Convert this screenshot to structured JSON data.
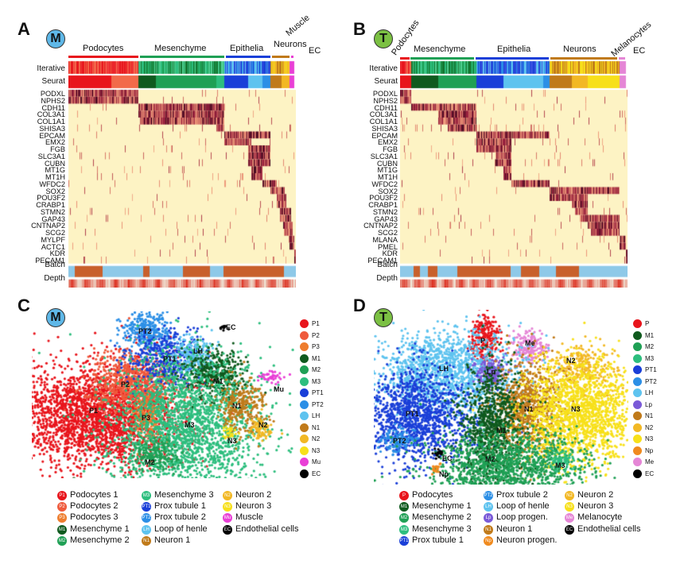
{
  "panels": {
    "A": {
      "letter": "A",
      "badge": "M",
      "groups": [
        "Podocytes",
        "Mesenchyme",
        "Epithelia",
        "Neurons",
        "Muscle",
        "EC"
      ],
      "tracks": {
        "iterative": "Iterative",
        "seurat": "Seurat",
        "batch": "Batch",
        "depth": "Depth"
      },
      "genes": [
        "PODXL",
        "NPHS2",
        "CDH11",
        "COL3A1",
        "COL1A1",
        "SHISA3",
        "EPCAM",
        "EMX2",
        "FGB",
        "SLC3A1",
        "CUBN",
        "MT1G",
        "MT1H",
        "WFDC2",
        "SOX2",
        "POU3F2",
        "CRABP1",
        "STMN2",
        "GAP43",
        "CNTNAP2",
        "SCG2",
        "MYLPF",
        "ACTC1",
        "KDR",
        "PECAM1"
      ]
    },
    "B": {
      "letter": "B",
      "badge": "T",
      "groups": [
        "Podocytes",
        "Mesenchyme",
        "Epithelia",
        "Neurons",
        "Melanocytes",
        "EC"
      ],
      "tracks": {
        "iterative": "Iterative",
        "seurat": "Seurat",
        "batch": "Batch",
        "depth": "Depth"
      },
      "genes": [
        "PODXL",
        "NPHS2",
        "CDH11",
        "COL3A1",
        "COL1A1",
        "SHISA3",
        "EPCAM",
        "EMX2",
        "FGB",
        "SLC3A1",
        "CUBN",
        "MT1G",
        "MT1H",
        "WFDC2",
        "SOX2",
        "POU3F2",
        "CRABP1",
        "STMN2",
        "GAP43",
        "CNTNAP2",
        "SCG2",
        "MLANA",
        "PMEL",
        "KDR",
        "PECAM1"
      ]
    },
    "C": {
      "letter": "C",
      "badge": "M",
      "clusters": [
        {
          "code": "P1",
          "color": "#e8151c"
        },
        {
          "code": "P2",
          "color": "#ef5a3c"
        },
        {
          "code": "P3",
          "color": "#ee7d2e"
        },
        {
          "code": "M1",
          "color": "#0f5a1e"
        },
        {
          "code": "M2",
          "color": "#1fa055"
        },
        {
          "code": "M3",
          "color": "#2dbe7e"
        },
        {
          "code": "PT1",
          "color": "#1a3fd8"
        },
        {
          "code": "PT2",
          "color": "#2c8fe6"
        },
        {
          "code": "LH",
          "color": "#5ec3ef"
        },
        {
          "code": "N1",
          "color": "#c07a1a"
        },
        {
          "code": "N2",
          "color": "#f2b824"
        },
        {
          "code": "N3",
          "color": "#f7e01a"
        },
        {
          "code": "Mu",
          "color": "#e93fd6"
        },
        {
          "code": "EC",
          "color": "#000000"
        }
      ],
      "plot_labels": {
        "PT2": "PT2",
        "EC": "EC",
        "PT1": "PT1",
        "LH": "LH",
        "M1": "M1",
        "P2": "P2",
        "Mu": "Mu",
        "P1": "P1",
        "P3": "P3",
        "N1": "N1",
        "M3": "M3",
        "N2": "N2",
        "N3": "N3",
        "M2": "M2"
      },
      "bottom_legend": [
        {
          "code": "P1",
          "label": "Podocytes 1",
          "color": "#e8151c"
        },
        {
          "code": "P2",
          "label": "Podocytes 2",
          "color": "#ef5a3c"
        },
        {
          "code": "P3",
          "label": "Podocytes 3",
          "color": "#ee7d2e"
        },
        {
          "code": "M1",
          "label": "Mesenchyme 1",
          "color": "#0f5a1e"
        },
        {
          "code": "M2",
          "label": "Mesenchyme 2",
          "color": "#1fa055"
        },
        {
          "code": "M3",
          "label": "Mesenchyme 3",
          "color": "#2dbe7e"
        },
        {
          "code": "PT1",
          "label": "Prox tubule 1",
          "color": "#1a3fd8"
        },
        {
          "code": "PT2",
          "label": "Prox tubule 2",
          "color": "#2c8fe6"
        },
        {
          "code": "LH",
          "label": "Loop of henle",
          "color": "#5ec3ef"
        },
        {
          "code": "N1",
          "label": "Neuron 1",
          "color": "#c07a1a"
        },
        {
          "code": "N2",
          "label": "Neuron 2",
          "color": "#f2b824"
        },
        {
          "code": "N3",
          "label": "Neuron 3",
          "color": "#f7e01a"
        },
        {
          "code": "Mu",
          "label": "Muscle",
          "color": "#e93fd6"
        },
        {
          "code": "EC",
          "label": "Endothelial cells",
          "color": "#000000"
        }
      ]
    },
    "D": {
      "letter": "D",
      "badge": "T",
      "clusters": [
        {
          "code": "P",
          "color": "#e8151c"
        },
        {
          "code": "M1",
          "color": "#0f5a1e"
        },
        {
          "code": "M2",
          "color": "#1fa055"
        },
        {
          "code": "M3",
          "color": "#2dbe7e"
        },
        {
          "code": "PT1",
          "color": "#1a3fd8"
        },
        {
          "code": "PT2",
          "color": "#2c8fe6"
        },
        {
          "code": "LH",
          "color": "#5ec3ef"
        },
        {
          "code": "Lp",
          "color": "#7a5ad8"
        },
        {
          "code": "N1",
          "color": "#c07a1a"
        },
        {
          "code": "N2",
          "color": "#f2b824"
        },
        {
          "code": "N3",
          "color": "#f7e01a"
        },
        {
          "code": "Np",
          "color": "#f08a1e"
        },
        {
          "code": "Me",
          "color": "#e586d6"
        },
        {
          "code": "EC",
          "color": "#000000"
        }
      ],
      "plot_labels": {
        "P": "P",
        "Me": "Me",
        "N2": "N2",
        "LH": "LH",
        "Lp": "Lp",
        "PT1": "PT1",
        "N1": "N1",
        "N3": "N3",
        "M1": "M1",
        "PT2": "PT2",
        "EC": "EC",
        "M2": "M2",
        "M3": "M3",
        "Np": "Np"
      },
      "bottom_legend": [
        {
          "code": "P",
          "label": "Podocytes",
          "color": "#e8151c"
        },
        {
          "code": "M1",
          "label": "Mesenchyme 1",
          "color": "#0f5a1e"
        },
        {
          "code": "M2",
          "label": "Mesenchyme 2",
          "color": "#1fa055"
        },
        {
          "code": "M3",
          "label": "Mesenchyme 3",
          "color": "#2dbe7e"
        },
        {
          "code": "PT1",
          "label": "Prox tubule 1",
          "color": "#1a3fd8"
        },
        {
          "code": "PT2",
          "label": "Prox tubule 2",
          "color": "#2c8fe6"
        },
        {
          "code": "LH",
          "label": "Loop of henle",
          "color": "#5ec3ef"
        },
        {
          "code": "Lp",
          "label": "Loop progen.",
          "color": "#7a5ad8"
        },
        {
          "code": "N1",
          "label": "Neuron 1",
          "color": "#c07a1a"
        },
        {
          "code": "Np",
          "label": "Neuron progen.",
          "color": "#f08a1e"
        },
        {
          "code": "N2",
          "label": "Neuron 2",
          "color": "#f2b824"
        },
        {
          "code": "N3",
          "label": "Neuron 3",
          "color": "#f7e01a"
        },
        {
          "code": "Me",
          "label": "Melanocyte",
          "color": "#e586d6"
        },
        {
          "code": "EC",
          "label": "Endothelial cells",
          "color": "#000000"
        }
      ]
    }
  }
}
